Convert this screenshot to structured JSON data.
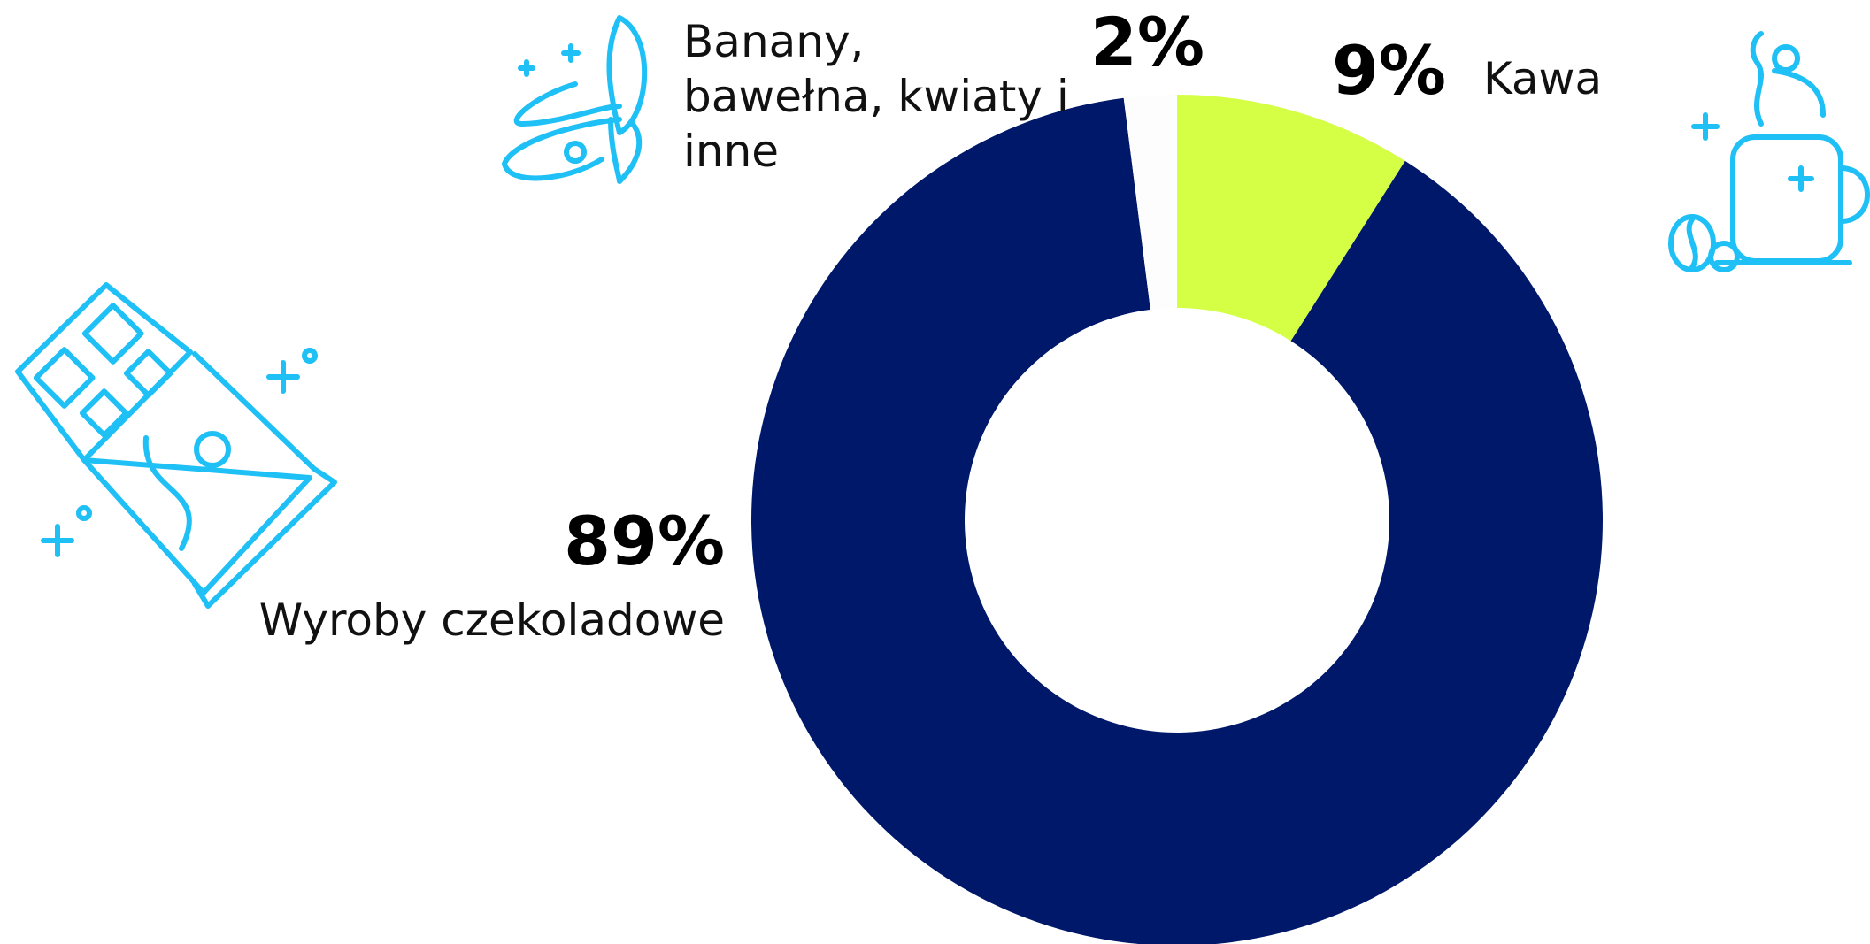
{
  "chart_data": {
    "type": "donut",
    "categories": [
      "Kawa",
      "Wyroby czekoladowe",
      "Banany, bawełna, kwiaty i inne"
    ],
    "values": [
      9,
      89,
      2
    ],
    "value_labels": [
      "9%",
      "89%",
      "2%"
    ],
    "colors": [
      "#d4ff45",
      "#00186a",
      "#fdfdfd"
    ]
  }
}
